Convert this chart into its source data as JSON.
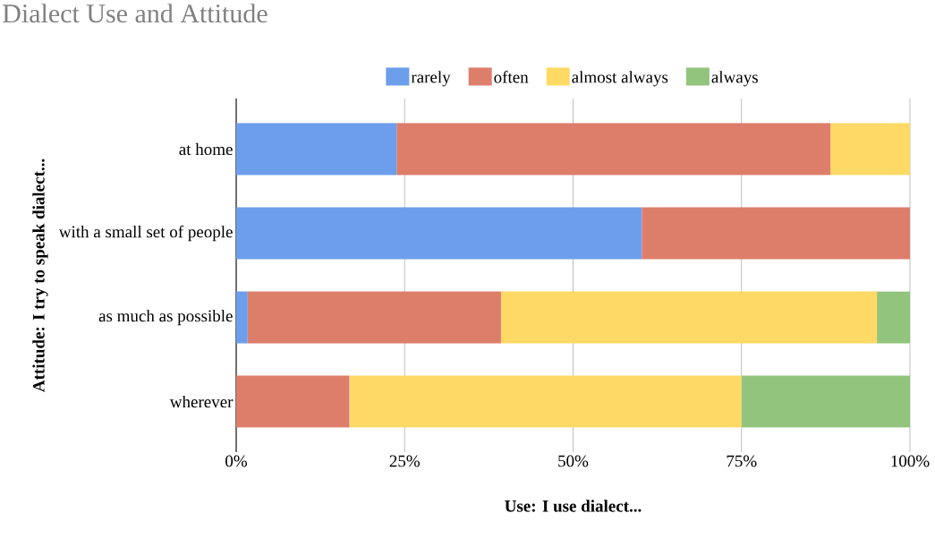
{
  "chart_data": {
    "type": "bar",
    "orientation": "horizontal",
    "stacked": true,
    "title": "Dialect Use and Attitude",
    "xlabel": "Use: I use dialect...",
    "ylabel": "Attitude: I try to speak dialect...",
    "categories": [
      "at home",
      "with a small set of people",
      "as much as possible",
      "wherever"
    ],
    "series": [
      {
        "name": "rarely",
        "color": "#6d9eeb",
        "values": [
          23.8,
          60.2,
          1.7,
          0
        ]
      },
      {
        "name": "often",
        "color": "#dd7e6b",
        "values": [
          64.4,
          39.8,
          37.6,
          16.8
        ]
      },
      {
        "name": "almost always",
        "color": "#ffd966",
        "values": [
          11.8,
          0,
          55.8,
          58.2
        ]
      },
      {
        "name": "always",
        "color": "#93c47d",
        "values": [
          0,
          0,
          4.9,
          25.0
        ]
      }
    ],
    "xlim": [
      0,
      100
    ],
    "xticks": [
      {
        "value": 0,
        "label": "0%"
      },
      {
        "value": 25,
        "label": "25%"
      },
      {
        "value": 50,
        "label": "50%"
      },
      {
        "value": 75,
        "label": "75%"
      },
      {
        "value": 100,
        "label": "100%"
      }
    ],
    "grid": "x",
    "legend": "top"
  }
}
